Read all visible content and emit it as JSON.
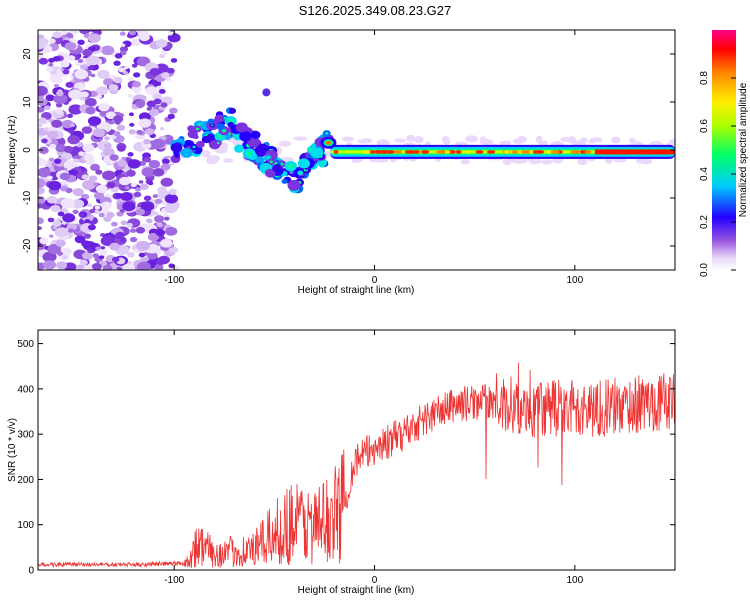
{
  "title": "S126.2025.349.08.23.G27",
  "chart_data": [
    {
      "type": "heatmap",
      "xlabel": "Height of straight line (km)",
      "ylabel": "Frequency (Hz)",
      "xlim": [
        -168,
        150
      ],
      "ylim": [
        -25,
        25
      ],
      "xticks": [
        "-100",
        "0",
        "100"
      ],
      "yticks": [
        "-20",
        "-10",
        "0",
        "10",
        "20"
      ],
      "colorbar": {
        "label": "Normalized spectral amplitude",
        "ticks": [
          "0.0",
          "0.2",
          "0.4",
          "0.6",
          "0.8"
        ]
      },
      "features": [
        {
          "name": "noise region",
          "x_range": [
            -168,
            -100
          ],
          "freq_range": [
            -25,
            25
          ],
          "amplitude": "low"
        },
        {
          "name": "scattered onset",
          "x_range": [
            -100,
            -25
          ],
          "freq_range": [
            -13,
            7
          ],
          "amplitude": "medium"
        },
        {
          "name": "stable carrier",
          "x_range": [
            -22,
            150
          ],
          "freq_range": [
            -1,
            2
          ],
          "amplitude": "high"
        }
      ]
    },
    {
      "type": "line",
      "xlabel": "Height of straight line (km)",
      "ylabel": "SNR (10 * v/v)",
      "xlim": [
        -168,
        150
      ],
      "ylim": [
        0,
        530
      ],
      "xticks": [
        "-100",
        "0",
        "100"
      ],
      "yticks": [
        "0",
        "100",
        "200",
        "300",
        "400",
        "500"
      ],
      "color": "#ee3333",
      "series": [
        {
          "name": "SNR",
          "x": [
            -168,
            -140,
            -120,
            -94,
            -88,
            -80,
            -70,
            -60,
            -50,
            -40,
            -30,
            -20,
            -15,
            -10,
            0,
            10,
            20,
            30,
            40,
            60,
            80,
            90,
            100,
            120,
            140,
            150
          ],
          "y": [
            12,
            12,
            12,
            15,
            60,
            35,
            40,
            45,
            80,
            110,
            95,
            120,
            150,
            240,
            270,
            290,
            320,
            345,
            365,
            375,
            345,
            360,
            355,
            360,
            370,
            375
          ]
        }
      ]
    }
  ]
}
